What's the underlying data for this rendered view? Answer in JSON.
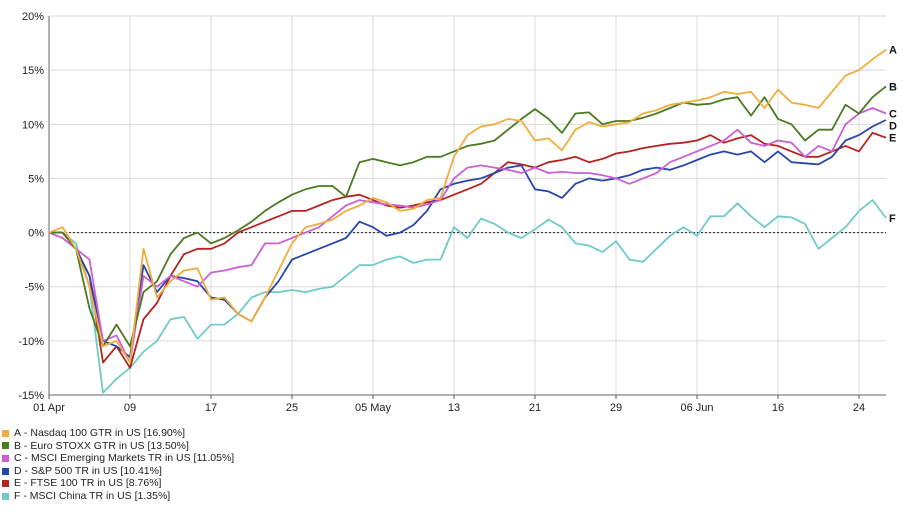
{
  "chart_data": {
    "type": "line",
    "ylim": [
      -15,
      20
    ],
    "y_ticks": [
      -15,
      -10,
      -5,
      0,
      5,
      10,
      15,
      20
    ],
    "y_tick_labels": [
      "-15%",
      "-10%",
      "-5%",
      "0%",
      "5%",
      "10%",
      "15%",
      "20%"
    ],
    "x_tick_positions": [
      0,
      6,
      12,
      18,
      24,
      30,
      36,
      42,
      48,
      54,
      60
    ],
    "x_tick_labels": [
      "01 Apr",
      "09",
      "17",
      "25",
      "05 May",
      "13",
      "21",
      "29",
      "06 Jun",
      "16",
      "24"
    ],
    "x_count": 63,
    "grid": true,
    "legend_position": "bottom-left",
    "series": [
      {
        "letter": "A",
        "name": "Nasdaq 100 GTR in US [16.90%]",
        "color": "#f0ad3c",
        "values": [
          0,
          0.5,
          -1.5,
          -5,
          -10.5,
          -10,
          -12,
          -1.5,
          -6,
          -4.5,
          -3.5,
          -3.3,
          -6.2,
          -6,
          -7.5,
          -8.2,
          -6,
          -3.5,
          -1,
          0.5,
          0.8,
          1.2,
          2,
          2.5,
          3.2,
          2.8,
          2,
          2.2,
          3,
          3.2,
          7,
          9,
          9.8,
          10,
          10.5,
          10.3,
          8.5,
          8.7,
          7.6,
          9.5,
          10.2,
          9.8,
          10,
          10.2,
          11,
          11.3,
          11.8,
          12,
          12.2,
          12.5,
          13,
          12.8,
          13,
          11.5,
          13.2,
          12,
          11.8,
          11.5,
          13,
          14.5,
          15,
          16,
          16.9
        ]
      },
      {
        "letter": "B",
        "name": "Euro STOXX GTR in US [13.50%]",
        "color": "#4c7a22",
        "values": [
          0,
          0,
          -1.5,
          -7,
          -10.5,
          -8.5,
          -10.5,
          -5.5,
          -4.5,
          -2,
          -0.5,
          0,
          -1,
          -0.5,
          0.2,
          1,
          2,
          2.8,
          3.5,
          4,
          4.3,
          4.3,
          3.3,
          6.5,
          6.8,
          6.5,
          6.2,
          6.5,
          7,
          7,
          7.5,
          8,
          8.2,
          8.5,
          9.5,
          10.5,
          11.4,
          10.5,
          9.2,
          11,
          11.1,
          10,
          10.3,
          10.3,
          10.6,
          11,
          11.5,
          12,
          11.8,
          11.9,
          12.3,
          12.5,
          10.8,
          12.5,
          10.5,
          10,
          8.5,
          9.5,
          9.5,
          11.8,
          11,
          12.5,
          13.5
        ]
      },
      {
        "letter": "C",
        "name": "MSCI Emerging Markets TR in US [11.05%]",
        "color": "#cc5fd4",
        "values": [
          0,
          -0.5,
          -1.5,
          -2.5,
          -10,
          -9.5,
          -12,
          -4,
          -5,
          -4,
          -4.5,
          -5,
          -3.7,
          -3.5,
          -3.2,
          -3,
          -1,
          -1,
          -0.5,
          0,
          0.5,
          1.5,
          2.5,
          3,
          2.8,
          2.6,
          2.5,
          2.3,
          2.6,
          3,
          5,
          6,
          6.2,
          6,
          5.8,
          5.5,
          6,
          5.5,
          5.6,
          5.5,
          5.5,
          5.3,
          5,
          4.5,
          5,
          5.5,
          6.5,
          7,
          7.5,
          8,
          8.5,
          9.5,
          8.3,
          8,
          8.5,
          8.3,
          7,
          8,
          7.5,
          10,
          11,
          11.5,
          11
        ]
      },
      {
        "letter": "D",
        "name": "S&P 500 TR in US [10.41%]",
        "color": "#2845a8",
        "values": [
          0,
          0,
          -1.5,
          -4,
          -10,
          -10.5,
          -11.5,
          -3,
          -5.5,
          -4,
          -4.2,
          -4.5,
          -6,
          -6.2,
          -7.5,
          -8.2,
          -6,
          -4.5,
          -2.5,
          -2,
          -1.5,
          -1,
          -0.5,
          1,
          0.5,
          -0.3,
          0,
          0.7,
          2,
          4,
          4.5,
          4.8,
          5,
          5.5,
          6,
          6.2,
          4,
          3.8,
          3.2,
          4.5,
          5,
          4.8,
          5,
          5.3,
          5.8,
          6,
          5.8,
          6.2,
          6.7,
          7.2,
          7.5,
          7.2,
          7.5,
          6.5,
          7.5,
          6.5,
          6.4,
          6.3,
          7,
          8.5,
          9,
          9.8,
          10.4
        ]
      },
      {
        "letter": "E",
        "name": "FTSE 100 TR in US [8.76%]",
        "color": "#b3231f",
        "values": [
          0,
          0,
          -1.5,
          -4,
          -12,
          -10.5,
          -12.5,
          -8,
          -6.5,
          -4,
          -2,
          -1.5,
          -1.5,
          -1,
          0,
          0.5,
          1,
          1.5,
          2,
          2,
          2.5,
          3,
          3.3,
          3.5,
          3,
          2.5,
          2.3,
          2.5,
          2.8,
          3,
          3.5,
          4,
          4.5,
          5.5,
          6.5,
          6.3,
          6,
          6.5,
          6.7,
          7,
          6.5,
          6.8,
          7.3,
          7.5,
          7.8,
          8,
          8.2,
          8.3,
          8.5,
          9,
          8.3,
          8.7,
          9,
          8.2,
          8,
          7.5,
          7,
          7,
          7.5,
          8,
          7.5,
          9.2,
          8.76
        ]
      },
      {
        "letter": "F",
        "name": "MSCI China TR in US [1.35%]",
        "color": "#6fcac9",
        "values": [
          0,
          0,
          -1,
          -5,
          -14.8,
          -13.5,
          -12.5,
          -11,
          -10,
          -8,
          -7.8,
          -9.8,
          -8.5,
          -8.5,
          -7.5,
          -6,
          -5.5,
          -5.5,
          -5.3,
          -5.5,
          -5.2,
          -5,
          -4,
          -3,
          -3,
          -2.5,
          -2.2,
          -2.8,
          -2.5,
          -2.5,
          0.5,
          -0.5,
          1.3,
          0.8,
          0,
          -0.5,
          0.3,
          1.2,
          0.5,
          -1,
          -1.2,
          -1.8,
          -0.8,
          -2.5,
          -2.7,
          -1.5,
          -0.3,
          0.5,
          -0.3,
          1.5,
          1.5,
          2.7,
          1.5,
          0.5,
          1.5,
          1.4,
          0.8,
          -1.5,
          -0.5,
          0.5,
          2,
          3,
          1.35
        ]
      }
    ]
  }
}
